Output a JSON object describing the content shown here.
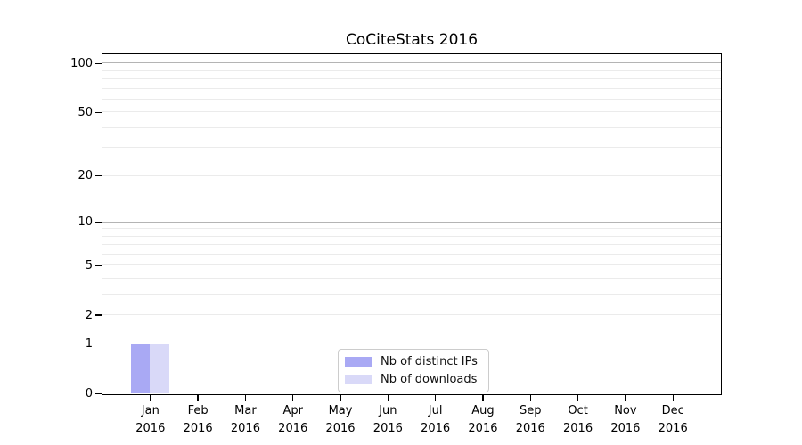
{
  "chart_data": {
    "type": "bar",
    "title": "CoCiteStats 2016",
    "categories": [
      "Jan",
      "Feb",
      "Mar",
      "Apr",
      "May",
      "Jun",
      "Jul",
      "Aug",
      "Sep",
      "Oct",
      "Nov",
      "Dec"
    ],
    "category_year": "2016",
    "series": [
      {
        "name": "Nb of distinct IPs",
        "color": "#a9a9f4",
        "values": [
          1,
          0,
          0,
          0,
          0,
          0,
          0,
          0,
          0,
          0,
          0,
          0
        ]
      },
      {
        "name": "Nb of downloads",
        "color": "#d9d9f8",
        "values": [
          1,
          0,
          0,
          0,
          0,
          0,
          0,
          0,
          0,
          0,
          0,
          0
        ]
      }
    ],
    "xlabel": "",
    "ylabel": "",
    "yscale": "log1p",
    "ylim": [
      0,
      113
    ],
    "ytick_values": [
      0,
      1,
      2,
      5,
      10,
      20,
      50,
      100
    ],
    "ytick_labels": [
      "0",
      "1",
      "2",
      "5",
      "10",
      "20",
      "50",
      "100"
    ],
    "major_grid_values": [
      1,
      10,
      100
    ],
    "minor_grid_values": [
      2,
      3,
      4,
      5,
      6,
      7,
      8,
      9,
      20,
      30,
      40,
      50,
      60,
      70,
      80,
      90
    ],
    "grid": "horizontal",
    "legend_position": "bottom-center",
    "colors": {
      "major_grid": "#b4b4b4",
      "minor_grid": "#ebebeb",
      "axis": "#000000",
      "background": "#ffffff"
    }
  }
}
